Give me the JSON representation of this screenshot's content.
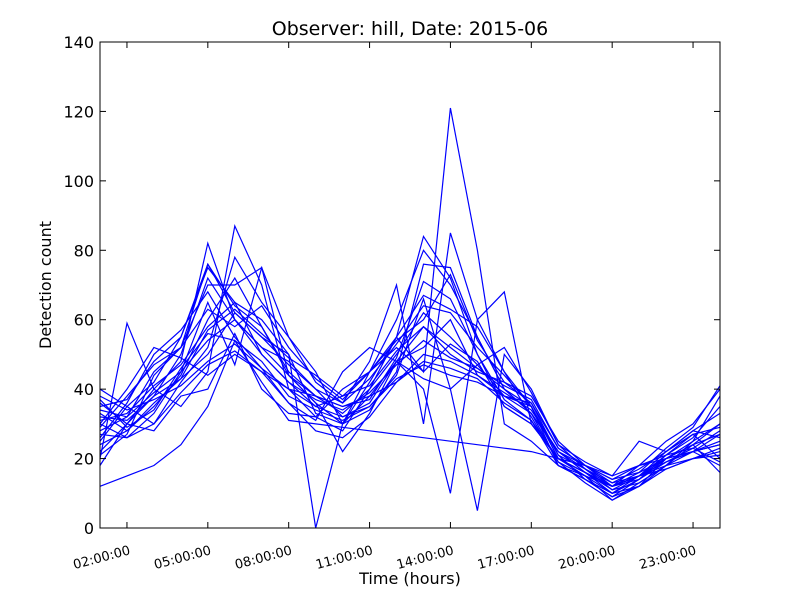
{
  "chart_data": {
    "type": "line",
    "title": "Observer: hill, Date: 2015-06",
    "xlabel": "Time (hours)",
    "ylabel": "Detection count",
    "x_tick_labels": [
      "02:00:00",
      "05:00:00",
      "08:00:00",
      "11:00:00",
      "14:00:00",
      "17:00:00",
      "20:00:00",
      "23:00:00"
    ],
    "x_ticks": [
      2,
      5,
      8,
      11,
      14,
      17,
      20,
      23
    ],
    "xlim": [
      1,
      24
    ],
    "ylim": [
      0,
      140
    ],
    "y_ticks": [
      0,
      20,
      40,
      60,
      80,
      100,
      120,
      140
    ],
    "series_color": "#0000ff",
    "x": [
      1,
      2,
      3,
      4,
      5,
      6,
      7,
      8,
      9,
      10,
      11,
      12,
      13,
      14,
      15,
      16,
      17,
      18,
      19,
      20,
      21,
      22,
      23,
      24
    ],
    "series": [
      {
        "values": [
          12,
          15,
          18,
          24,
          35,
          54,
          42,
          31,
          30,
          29,
          28,
          27,
          26,
          25,
          24,
          23,
          22,
          20,
          18,
          15,
          18,
          20,
          22,
          25
        ]
      },
      {
        "values": [
          18,
          30,
          40,
          48,
          82,
          60,
          50,
          42,
          35,
          38,
          45,
          55,
          84,
          72,
          50,
          35,
          30,
          20,
          16,
          12,
          15,
          20,
          22,
          24
        ]
      },
      {
        "values": [
          20,
          59,
          40,
          35,
          45,
          87,
          70,
          40,
          32,
          28,
          40,
          55,
          45,
          121,
          80,
          30,
          25,
          18,
          14,
          10,
          12,
          18,
          20,
          22
        ]
      },
      {
        "values": [
          28,
          32,
          45,
          52,
          76,
          62,
          55,
          50,
          0,
          30,
          45,
          60,
          80,
          70,
          55,
          40,
          35,
          20,
          15,
          8,
          12,
          20,
          25,
          30
        ]
      },
      {
        "values": [
          35,
          37,
          48,
          55,
          76,
          64,
          58,
          45,
          38,
          33,
          40,
          50,
          62,
          55,
          47,
          38,
          33,
          22,
          17,
          13,
          15,
          22,
          28,
          33
        ]
      },
      {
        "values": [
          40,
          35,
          30,
          42,
          52,
          78,
          65,
          55,
          42,
          36,
          48,
          70,
          30,
          85,
          60,
          45,
          35,
          18,
          15,
          12,
          18,
          25,
          30,
          40
        ]
      },
      {
        "values": [
          27,
          26,
          33,
          45,
          65,
          47,
          75,
          55,
          45,
          30,
          38,
          48,
          40,
          10,
          60,
          68,
          30,
          20,
          16,
          10,
          15,
          18,
          25,
          38
        ]
      },
      {
        "values": [
          22,
          30,
          38,
          50,
          72,
          60,
          52,
          48,
          40,
          32,
          36,
          48,
          58,
          50,
          45,
          42,
          38,
          25,
          18,
          14,
          16,
          20,
          24,
          27
        ]
      },
      {
        "values": [
          33,
          28,
          35,
          44,
          60,
          72,
          58,
          44,
          36,
          30,
          34,
          45,
          76,
          75,
          55,
          40,
          33,
          22,
          16,
          12,
          14,
          19,
          23,
          28
        ]
      },
      {
        "values": [
          30,
          40,
          52,
          49,
          44,
          50,
          45,
          40,
          38,
          35,
          38,
          42,
          50,
          48,
          44,
          38,
          36,
          21,
          14,
          9,
          12,
          17,
          20,
          23
        ]
      },
      {
        "values": [
          37,
          29,
          34,
          46,
          56,
          54,
          48,
          38,
          34,
          31,
          35,
          44,
          66,
          40,
          5,
          50,
          40,
          24,
          17,
          11,
          13,
          18,
          24,
          30
        ]
      },
      {
        "values": [
          25,
          35,
          42,
          55,
          75,
          65,
          60,
          50,
          33,
          30,
          42,
          55,
          67,
          63,
          58,
          45,
          32,
          19,
          15,
          10,
          14,
          21,
          26,
          35
        ]
      },
      {
        "values": [
          31,
          33,
          41,
          47,
          58,
          65,
          50,
          42,
          37,
          34,
          39,
          47,
          54,
          49,
          46,
          41,
          37,
          23,
          18,
          13,
          17,
          22,
          27,
          20
        ]
      },
      {
        "values": [
          36,
          30,
          28,
          38,
          40,
          56,
          40,
          33,
          32,
          40,
          45,
          52,
          45,
          53,
          48,
          35,
          30,
          20,
          16,
          12,
          15,
          19,
          22,
          27
        ]
      },
      {
        "values": [
          24,
          28,
          36,
          43,
          50,
          62,
          55,
          47,
          40,
          36,
          43,
          53,
          64,
          62,
          52,
          44,
          35,
          21,
          17,
          12,
          16,
          23,
          29,
          41
        ]
      },
      {
        "values": [
          29,
          38,
          47,
          52,
          70,
          70,
          75,
          44,
          38,
          35,
          37,
          49,
          71,
          66,
          50,
          37,
          31,
          18,
          14,
          9,
          14,
          20,
          24,
          16
        ]
      },
      {
        "values": [
          34,
          32,
          39,
          45,
          54,
          60,
          52,
          44,
          36,
          22,
          33,
          48,
          52,
          60,
          44,
          39,
          34,
          22,
          18,
          14,
          18,
          21,
          23,
          19
        ]
      },
      {
        "values": [
          21,
          27,
          44,
          52,
          63,
          58,
          64,
          52,
          43,
          37,
          45,
          54,
          60,
          73,
          54,
          42,
          36,
          23,
          18,
          12,
          15,
          21,
          27,
          29
        ]
      },
      {
        "values": [
          38,
          34,
          37,
          41,
          48,
          53,
          46,
          40,
          35,
          32,
          35,
          43,
          47,
          44,
          42,
          38,
          35,
          20,
          16,
          11,
          15,
          17,
          20,
          21
        ]
      },
      {
        "values": [
          26,
          36,
          50,
          57,
          68,
          55,
          46,
          36,
          31,
          45,
          52,
          48,
          43,
          40,
          47,
          52,
          39,
          24,
          19,
          15,
          25,
          22,
          28,
          26
        ]
      },
      {
        "values": [
          32,
          31,
          38,
          43,
          57,
          63,
          56,
          49,
          44,
          38,
          41,
          51,
          58,
          52,
          46,
          40,
          33,
          19,
          13,
          8,
          13,
          18,
          22,
          24
        ]
      },
      {
        "values": [
          30,
          26,
          30,
          39,
          47,
          51,
          45,
          36,
          28,
          26,
          32,
          42,
          48,
          46,
          43,
          36,
          31,
          20,
          16,
          12,
          15,
          19,
          22,
          18
        ]
      }
    ]
  }
}
